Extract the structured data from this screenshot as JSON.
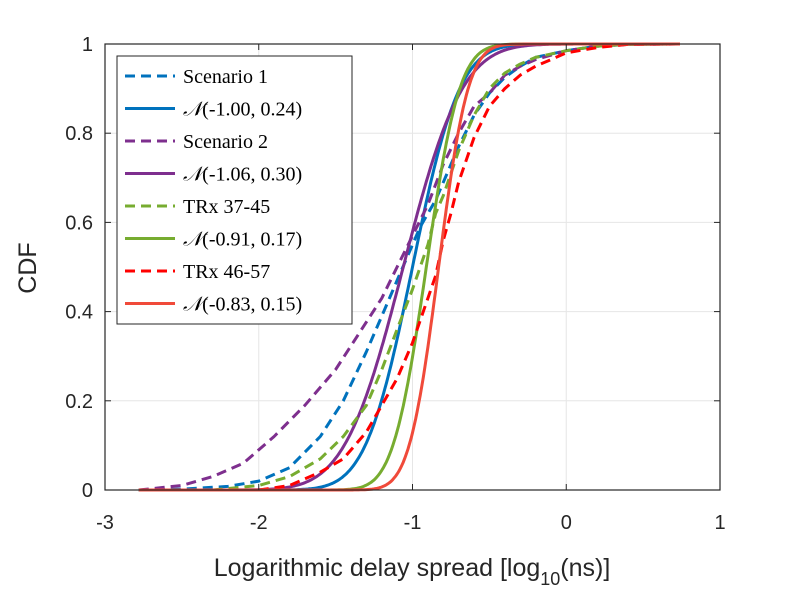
{
  "chart_data": {
    "type": "line",
    "xlabel": "Logarithmic delay spread [log",
    "xlabel_sub": "10",
    "xlabel_tail": "(ns)]",
    "ylabel": "CDF",
    "xlim": [
      -3,
      1
    ],
    "ylim": [
      0,
      1
    ],
    "xticks": [
      "-3",
      "-2",
      "-1",
      "0",
      "1"
    ],
    "yticks": [
      "0",
      "0.2",
      "0.4",
      "0.6",
      "0.8",
      "1"
    ],
    "grid": true,
    "legend_position": "top-left",
    "colors": {
      "scenario1": "#0072BD",
      "scenario2": "#7E2F8E",
      "trx37": "#77AC30",
      "trx46": "#FF0000",
      "trx46_fit": "#F04A3A"
    },
    "series": [
      {
        "name": "Scenario 1",
        "style": "dashed",
        "color": "#0072BD",
        "x": [
          -2.78,
          -2.5,
          -2.2,
          -2.0,
          -1.8,
          -1.6,
          -1.45,
          -1.3,
          -1.2,
          -1.1,
          -1.0,
          -0.95,
          -0.9,
          -0.85,
          -0.8,
          -0.7,
          -0.6,
          -0.5,
          -0.4,
          -0.3,
          -0.2,
          0.0,
          0.2,
          0.4,
          0.74
        ],
        "y": [
          0.0,
          0.002,
          0.008,
          0.02,
          0.05,
          0.12,
          0.2,
          0.31,
          0.39,
          0.47,
          0.55,
          0.59,
          0.62,
          0.65,
          0.69,
          0.77,
          0.84,
          0.89,
          0.925,
          0.95,
          0.97,
          0.985,
          0.995,
          0.999,
          1.0
        ]
      },
      {
        "name": "N(-1.00, 0.24)",
        "style": "solid",
        "color": "#0072BD",
        "normal": {
          "mu": -1.0,
          "sigma": 0.24
        }
      },
      {
        "name": "Scenario 2",
        "style": "dashed",
        "color": "#7E2F8E",
        "x": [
          -2.78,
          -2.5,
          -2.3,
          -2.1,
          -1.9,
          -1.7,
          -1.5,
          -1.35,
          -1.2,
          -1.1,
          -1.0,
          -0.9,
          -0.8,
          -0.7,
          -0.6,
          -0.5,
          -0.4,
          -0.3,
          -0.2,
          0.0,
          0.2,
          0.4,
          0.74
        ],
        "y": [
          0.0,
          0.01,
          0.03,
          0.06,
          0.12,
          0.19,
          0.27,
          0.35,
          0.43,
          0.5,
          0.57,
          0.64,
          0.73,
          0.8,
          0.86,
          0.89,
          0.93,
          0.95,
          0.965,
          0.985,
          0.995,
          0.999,
          1.0
        ]
      },
      {
        "name": "N(-1.06, 0.30)",
        "style": "solid",
        "color": "#7E2F8E",
        "normal": {
          "mu": -1.06,
          "sigma": 0.3
        }
      },
      {
        "name": "TRx 37-45",
        "style": "dashed",
        "color": "#77AC30",
        "x": [
          -2.3,
          -2.0,
          -1.8,
          -1.6,
          -1.45,
          -1.3,
          -1.2,
          -1.1,
          -1.0,
          -0.9,
          -0.85,
          -0.8,
          -0.7,
          -0.6,
          -0.5,
          -0.4,
          -0.3,
          -0.2,
          0.0,
          0.2,
          0.4,
          0.74
        ],
        "y": [
          0.0,
          0.01,
          0.03,
          0.07,
          0.12,
          0.19,
          0.27,
          0.36,
          0.45,
          0.55,
          0.62,
          0.66,
          0.76,
          0.84,
          0.9,
          0.935,
          0.955,
          0.97,
          0.985,
          0.995,
          0.999,
          1.0
        ]
      },
      {
        "name": "N(-0.91, 0.17)",
        "style": "solid",
        "color": "#77AC30",
        "normal": {
          "mu": -0.91,
          "sigma": 0.17
        }
      },
      {
        "name": "TRx 46-57",
        "style": "dashed",
        "color": "#FF0000",
        "x": [
          -2.0,
          -1.8,
          -1.6,
          -1.45,
          -1.3,
          -1.2,
          -1.1,
          -1.0,
          -0.9,
          -0.85,
          -0.8,
          -0.75,
          -0.7,
          -0.6,
          -0.5,
          -0.4,
          -0.3,
          -0.2,
          -0.1,
          0.0,
          0.2,
          0.4,
          0.74
        ],
        "y": [
          0.0,
          0.01,
          0.04,
          0.07,
          0.13,
          0.19,
          0.25,
          0.33,
          0.43,
          0.48,
          0.56,
          0.62,
          0.69,
          0.79,
          0.86,
          0.9,
          0.93,
          0.95,
          0.965,
          0.98,
          0.992,
          0.999,
          1.0
        ]
      },
      {
        "name": "N(-0.83, 0.15)",
        "style": "solid",
        "color": "#F04A3A",
        "normal": {
          "mu": -0.83,
          "sigma": 0.15
        }
      }
    ],
    "legend_entries": [
      {
        "style": "dashed",
        "color": "#0072BD",
        "text": "Scenario 1",
        "math": false
      },
      {
        "style": "solid",
        "color": "#0072BD",
        "text": "(-1.00, 0.24)",
        "math": true
      },
      {
        "style": "dashed",
        "color": "#7E2F8E",
        "text": "Scenario 2",
        "math": false
      },
      {
        "style": "solid",
        "color": "#7E2F8E",
        "text": "(-1.06, 0.30)",
        "math": true
      },
      {
        "style": "dashed",
        "color": "#77AC30",
        "text": "TRx 37-45",
        "math": false
      },
      {
        "style": "solid",
        "color": "#77AC30",
        "text": "(-0.91, 0.17)",
        "math": true
      },
      {
        "style": "dashed",
        "color": "#FF0000",
        "text": "TRx 46-57",
        "math": false
      },
      {
        "style": "solid",
        "color": "#F04A3A",
        "text": "(-0.83, 0.15)",
        "math": true
      }
    ],
    "normal_symbol": "𝒩"
  }
}
